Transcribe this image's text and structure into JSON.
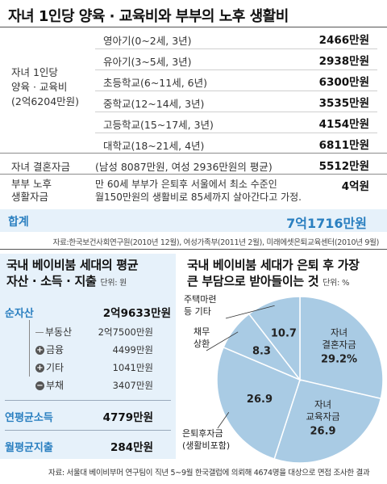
{
  "title": "자녀 1인당 양육 · 교육비와 부부의 노후 생활비",
  "child_cost": {
    "group_label": [
      "자녀 1인당",
      "양육 · 교육비",
      "(2억6204만원)"
    ],
    "rows": [
      {
        "label": "영아기(0~2세, 3년)",
        "value": "2466만원"
      },
      {
        "label": "유아기(3~5세, 3년)",
        "value": "2938만원"
      },
      {
        "label": "초등학교(6~11세, 6년)",
        "value": "6300만원"
      },
      {
        "label": "중학교(12~14세, 3년)",
        "value": "3535만원"
      },
      {
        "label": "고등학교(15~17세, 3년)",
        "value": "4154만원"
      },
      {
        "label": "대학교(18~21세, 4년)",
        "value": "6811만원"
      }
    ]
  },
  "marriage": {
    "label": "자녀 결혼자금",
    "desc": "(남성 8087만원, 여성 2936만원의 평균)",
    "value": "5512만원"
  },
  "retirement": {
    "label": [
      "부부 노후",
      "생활자금"
    ],
    "desc": [
      "만 60세 부부가 은퇴후 서울에서 최소 수준인",
      "월150만원의 생활비로 85세까지 살아간다고 가정."
    ],
    "value": "4억원"
  },
  "total": {
    "label": "합계",
    "value": "7억1716만원"
  },
  "source_top": "자료:한국보건사회연구원(2010년 12월), 여성가족부(2011년 2월), 미래에셋은퇴교육센터(2010년 9월)",
  "left_panel": {
    "title_line1": "국내 베이비붐 세대의 평균",
    "title_line2": "자산 · 소득 · 지출",
    "unit": "단위: 원",
    "net_assets": {
      "label": "순자산",
      "value": "2억9633만원"
    },
    "items": [
      {
        "sign": "",
        "label": "부동산",
        "value": "2억7500만원"
      },
      {
        "sign": "+",
        "label": "금융",
        "value": "4499만원"
      },
      {
        "sign": "+",
        "label": "기타",
        "value": "1041만원"
      },
      {
        "sign": "−",
        "label": "부채",
        "value": "3407만원"
      }
    ],
    "income": {
      "label": "연평균소득",
      "value": "4779만원"
    },
    "spending": {
      "label": "월평균지출",
      "value": "284만원"
    }
  },
  "chart_data": {
    "type": "pie",
    "title": "국내 베이비붐 세대가 은퇴 후 가장 큰 부담으로 받아들이는 것",
    "unit": "단위: %",
    "slices": [
      {
        "label": "자녀 결혼자금",
        "value": 29.2,
        "value_label": "29.2%"
      },
      {
        "label": "자녀 교육자금",
        "value": 26.9,
        "value_label": "26.9"
      },
      {
        "label": "은퇴후자금 (생활비포함)",
        "value": 26.9,
        "value_label": "26.9"
      },
      {
        "label": "채무 상환",
        "value": 8.3,
        "value_label": "8.3"
      },
      {
        "label": "주택마련 등 기타",
        "value": 10.7,
        "value_label": "10.7"
      }
    ],
    "colors": {
      "pie_fill": "#a9cbe4",
      "pie_stroke": "#ffffff"
    }
  },
  "right_title_line1": "국내 베이비붐 세대가 은퇴 후 가장",
  "right_title_line2": "큰 부담으로 받아들이는 것",
  "right_unit": "단위: %",
  "pie_labels": {
    "marriage": [
      "자녀",
      "결혼자금"
    ],
    "education": [
      "자녀",
      "교육자금"
    ],
    "retire": [
      "은퇴후자금",
      "(생활비포함)"
    ],
    "debt": [
      "채무",
      "상환"
    ],
    "house": [
      "주택마련",
      "등 기타"
    ]
  },
  "source_bottom": "자료: 서울대 베이비부머 연구팀이 직년 5~9월 한국갤럽에 의뢰해 4674명을 대상으로 면접 조사한 결과",
  "colors": {
    "accent": "#2a7fc0",
    "panel_bg": "#e6f1fa"
  }
}
